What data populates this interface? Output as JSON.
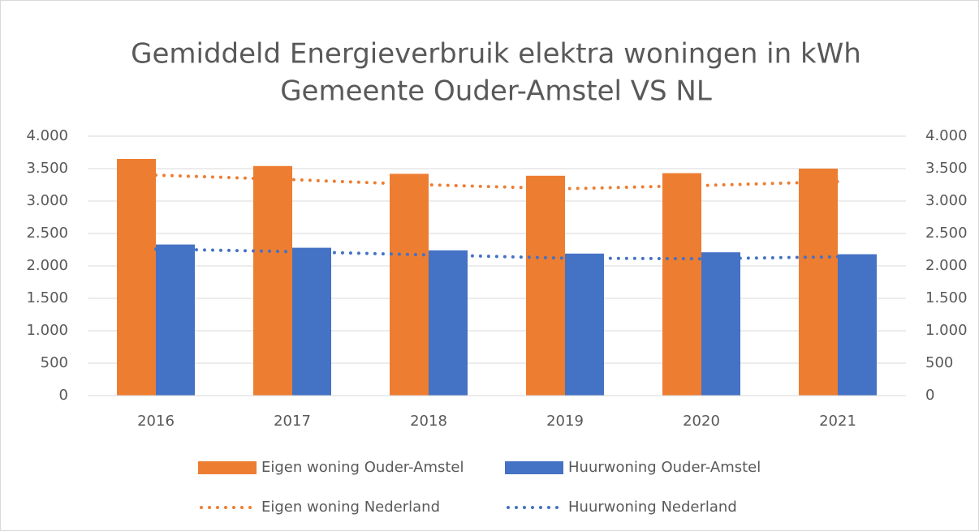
{
  "chart_data": {
    "type": "bar",
    "title": [
      "Gemiddeld Energieverbruik elektra woningen in kWh",
      "Gemeente Ouder-Amstel VS NL"
    ],
    "categories": [
      "2016",
      "2017",
      "2018",
      "2019",
      "2020",
      "2021"
    ],
    "series": [
      {
        "name": "Eigen woning Ouder-Amstel",
        "type": "bar",
        "color": "#ed7d31",
        "values": [
          3650,
          3540,
          3420,
          3390,
          3430,
          3500
        ]
      },
      {
        "name": "Huurwoning Ouder-Amstel",
        "type": "bar",
        "color": "#4472c4",
        "values": [
          2330,
          2280,
          2240,
          2190,
          2210,
          2180
        ]
      },
      {
        "name": "Eigen woning Nederland",
        "type": "line",
        "axis": "y2",
        "color": "#ed7d31",
        "values": [
          3400,
          3330,
          3250,
          3190,
          3240,
          3300
        ]
      },
      {
        "name": "Huurwoning Nederland",
        "type": "line",
        "axis": "y2",
        "color": "#4472c4",
        "values": [
          2260,
          2220,
          2170,
          2120,
          2110,
          2140
        ]
      }
    ],
    "ylim": [
      0,
      4000
    ],
    "yticks": [
      0,
      500,
      {
        "value": 1000,
        "label": "1.000"
      },
      {
        "value": 1500,
        "label": "1.500"
      },
      {
        "value": 2000,
        "label": "2.000"
      },
      {
        "value": 2500,
        "label": "2.500"
      },
      {
        "value": 3000,
        "label": "3.000"
      },
      {
        "value": 3500,
        "label": "3.500"
      },
      {
        "value": 4000,
        "label": "4.000"
      }
    ],
    "y2lim": [
      0,
      4000
    ],
    "y2ticks": [
      0,
      500,
      {
        "value": 1000,
        "label": "1.000"
      },
      {
        "value": 1500,
        "label": "1.500"
      },
      {
        "value": 2000,
        "label": "2.000"
      },
      {
        "value": 2500,
        "label": "2.500"
      },
      {
        "value": 3000,
        "label": "3.000"
      },
      {
        "value": 3500,
        "label": "3.500"
      },
      {
        "value": 4000,
        "label": "4.000"
      }
    ],
    "grid": true,
    "legend": "bottom"
  }
}
